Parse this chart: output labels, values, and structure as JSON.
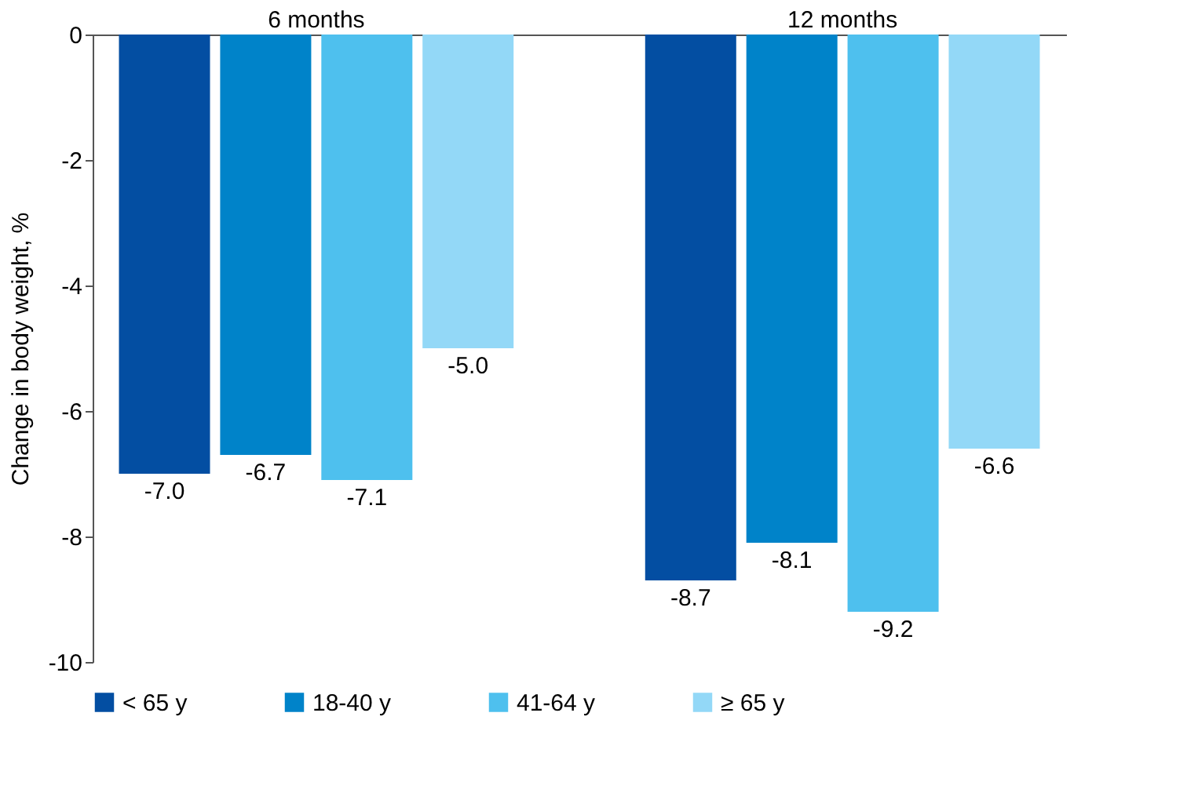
{
  "chart_data": {
    "type": "bar",
    "ylabel": "Change in body weight, %",
    "categories": [
      "6 months",
      "12 months"
    ],
    "series": [
      {
        "name": "< 65 y",
        "color": "#034ea2",
        "values": [
          -7.0,
          -8.7
        ],
        "value_labels": [
          "-7.0",
          "-8.7"
        ]
      },
      {
        "name": "18-40 y",
        "color": "#0083c9",
        "values": [
          -6.7,
          -8.1
        ],
        "value_labels": [
          "-6.7",
          "-8.1"
        ]
      },
      {
        "name": "41-64 y",
        "color": "#4ec0ee",
        "values": [
          -7.1,
          -9.2
        ],
        "value_labels": [
          "-7.1",
          "-9.2"
        ]
      },
      {
        "name": "≥ 65 y",
        "color": "#93d8f7",
        "values": [
          -5.0,
          -6.6
        ],
        "value_labels": [
          "-5.0",
          "-6.6"
        ]
      }
    ],
    "ylim": [
      -10,
      0
    ],
    "yticks": [
      0,
      -2,
      -4,
      -6,
      -8,
      -10
    ],
    "grid": false,
    "legend": "bottom"
  }
}
